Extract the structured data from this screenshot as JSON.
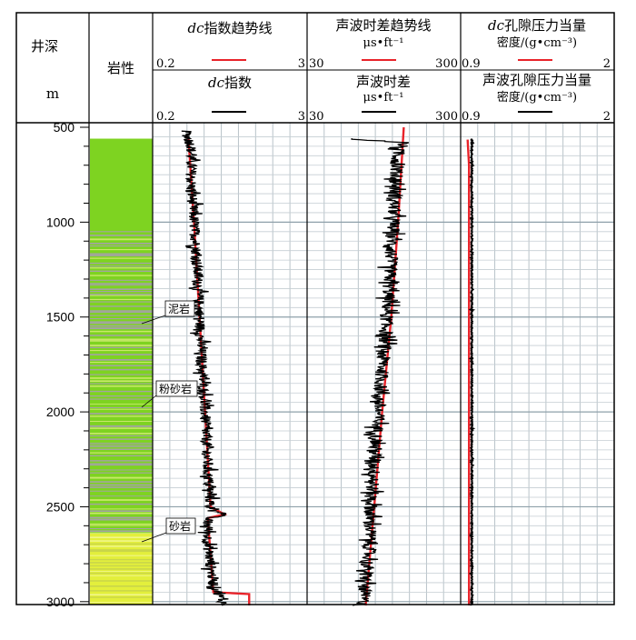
{
  "chart_data": {
    "type": "line",
    "depth_axis": {
      "label": "井深",
      "unit": "m",
      "min": 500,
      "max": 3020,
      "ticks": [
        500,
        1000,
        1500,
        2000,
        2500,
        3000
      ],
      "tick_labels": [
        "500",
        "1000",
        "1500",
        "2000",
        "2500",
        "3000"
      ]
    },
    "lithology": {
      "label": "岩性",
      "top": 560,
      "annotations": [
        {
          "text": "泥岩",
          "depth": 1500
        },
        {
          "text": "粉砂岩",
          "depth": 2000
        },
        {
          "text": "砂岩",
          "depth": 2700
        }
      ]
    },
    "tracks": [
      {
        "title_prefix": "dc",
        "title": "指数趋势线",
        "min": 0.2,
        "max": 3,
        "min_label": "0.2",
        "max_label": "3",
        "second_title_prefix": "dc",
        "second_title": "指数",
        "second_min_label": "0.2",
        "second_max_label": "3"
      },
      {
        "title": "声波时差趋势线",
        "unit": "μs•ft⁻¹",
        "min": 30,
        "max": 300,
        "min_label": "30",
        "max_label": "300",
        "second_title": "声波时差",
        "second_unit": "μs•ft⁻¹",
        "second_min_label": "30",
        "second_max_label": "300"
      },
      {
        "title_prefix": "dc",
        "title": "孔隙压力当量",
        "title_line2": "密度/(g•cm⁻³)",
        "min": 0.9,
        "max": 2,
        "min_label": "0.9",
        "max_label": "2",
        "second_title": "声波孔隙压力当量",
        "second_title_line2": "密度/(g•cm⁻³)",
        "second_min_label": "0.9",
        "second_max_label": "2"
      }
    ],
    "series": [
      {
        "name": "dc指数趋势线",
        "track": 0,
        "color": "#e8232a",
        "style": "trend",
        "depth": [
          560,
          1000,
          1500,
          2000,
          2500,
          2540,
          2560,
          2950,
          2960,
          3020
        ],
        "values": [
          0.85,
          0.95,
          1.05,
          1.15,
          1.25,
          1.5,
          1.2,
          1.3,
          1.95,
          1.95
        ]
      },
      {
        "name": "dc指数",
        "track": 0,
        "color": "#000000",
        "style": "noisy",
        "depth": [
          520,
          600,
          800,
          1000,
          1200,
          1500,
          1800,
          2000,
          2300,
          2500,
          2540,
          2560,
          2700,
          2900,
          3020
        ],
        "values": [
          0.8,
          0.9,
          0.9,
          0.95,
          1.0,
          1.05,
          1.1,
          1.15,
          1.2,
          1.25,
          1.5,
          1.2,
          1.2,
          1.3,
          1.5
        ]
      },
      {
        "name": "声波时差趋势线",
        "track": 1,
        "color": "#e8232a",
        "style": "trend",
        "depth": [
          500,
          1000,
          1500,
          2000,
          2500,
          3020
        ],
        "values": [
          200,
          190,
          178,
          162,
          148,
          133
        ]
      },
      {
        "name": "声波时差",
        "track": 1,
        "color": "#000000",
        "style": "noisy",
        "depth": [
          560,
          580,
          620,
          800,
          1000,
          1300,
          1600,
          1900,
          2200,
          2500,
          2700,
          2900,
          3020
        ],
        "values": [
          100,
          200,
          190,
          185,
          182,
          175,
          168,
          158,
          150,
          142,
          140,
          132,
          128
        ]
      },
      {
        "name": "dc孔隙压力当量密度",
        "track": 2,
        "color": "#e8232a",
        "style": "trend",
        "depth": [
          565,
          700,
          1000,
          1500,
          2000,
          2500,
          3020
        ],
        "values": [
          0.95,
          0.96,
          0.96,
          0.96,
          0.96,
          0.96,
          0.96
        ]
      },
      {
        "name": "声波孔隙压力当量密度",
        "track": 2,
        "color": "#000000",
        "style": "noisy",
        "depth": [
          560,
          1000,
          1500,
          2000,
          2500,
          3020
        ],
        "values": [
          0.98,
          0.98,
          0.98,
          0.98,
          0.98,
          0.98
        ]
      }
    ]
  }
}
